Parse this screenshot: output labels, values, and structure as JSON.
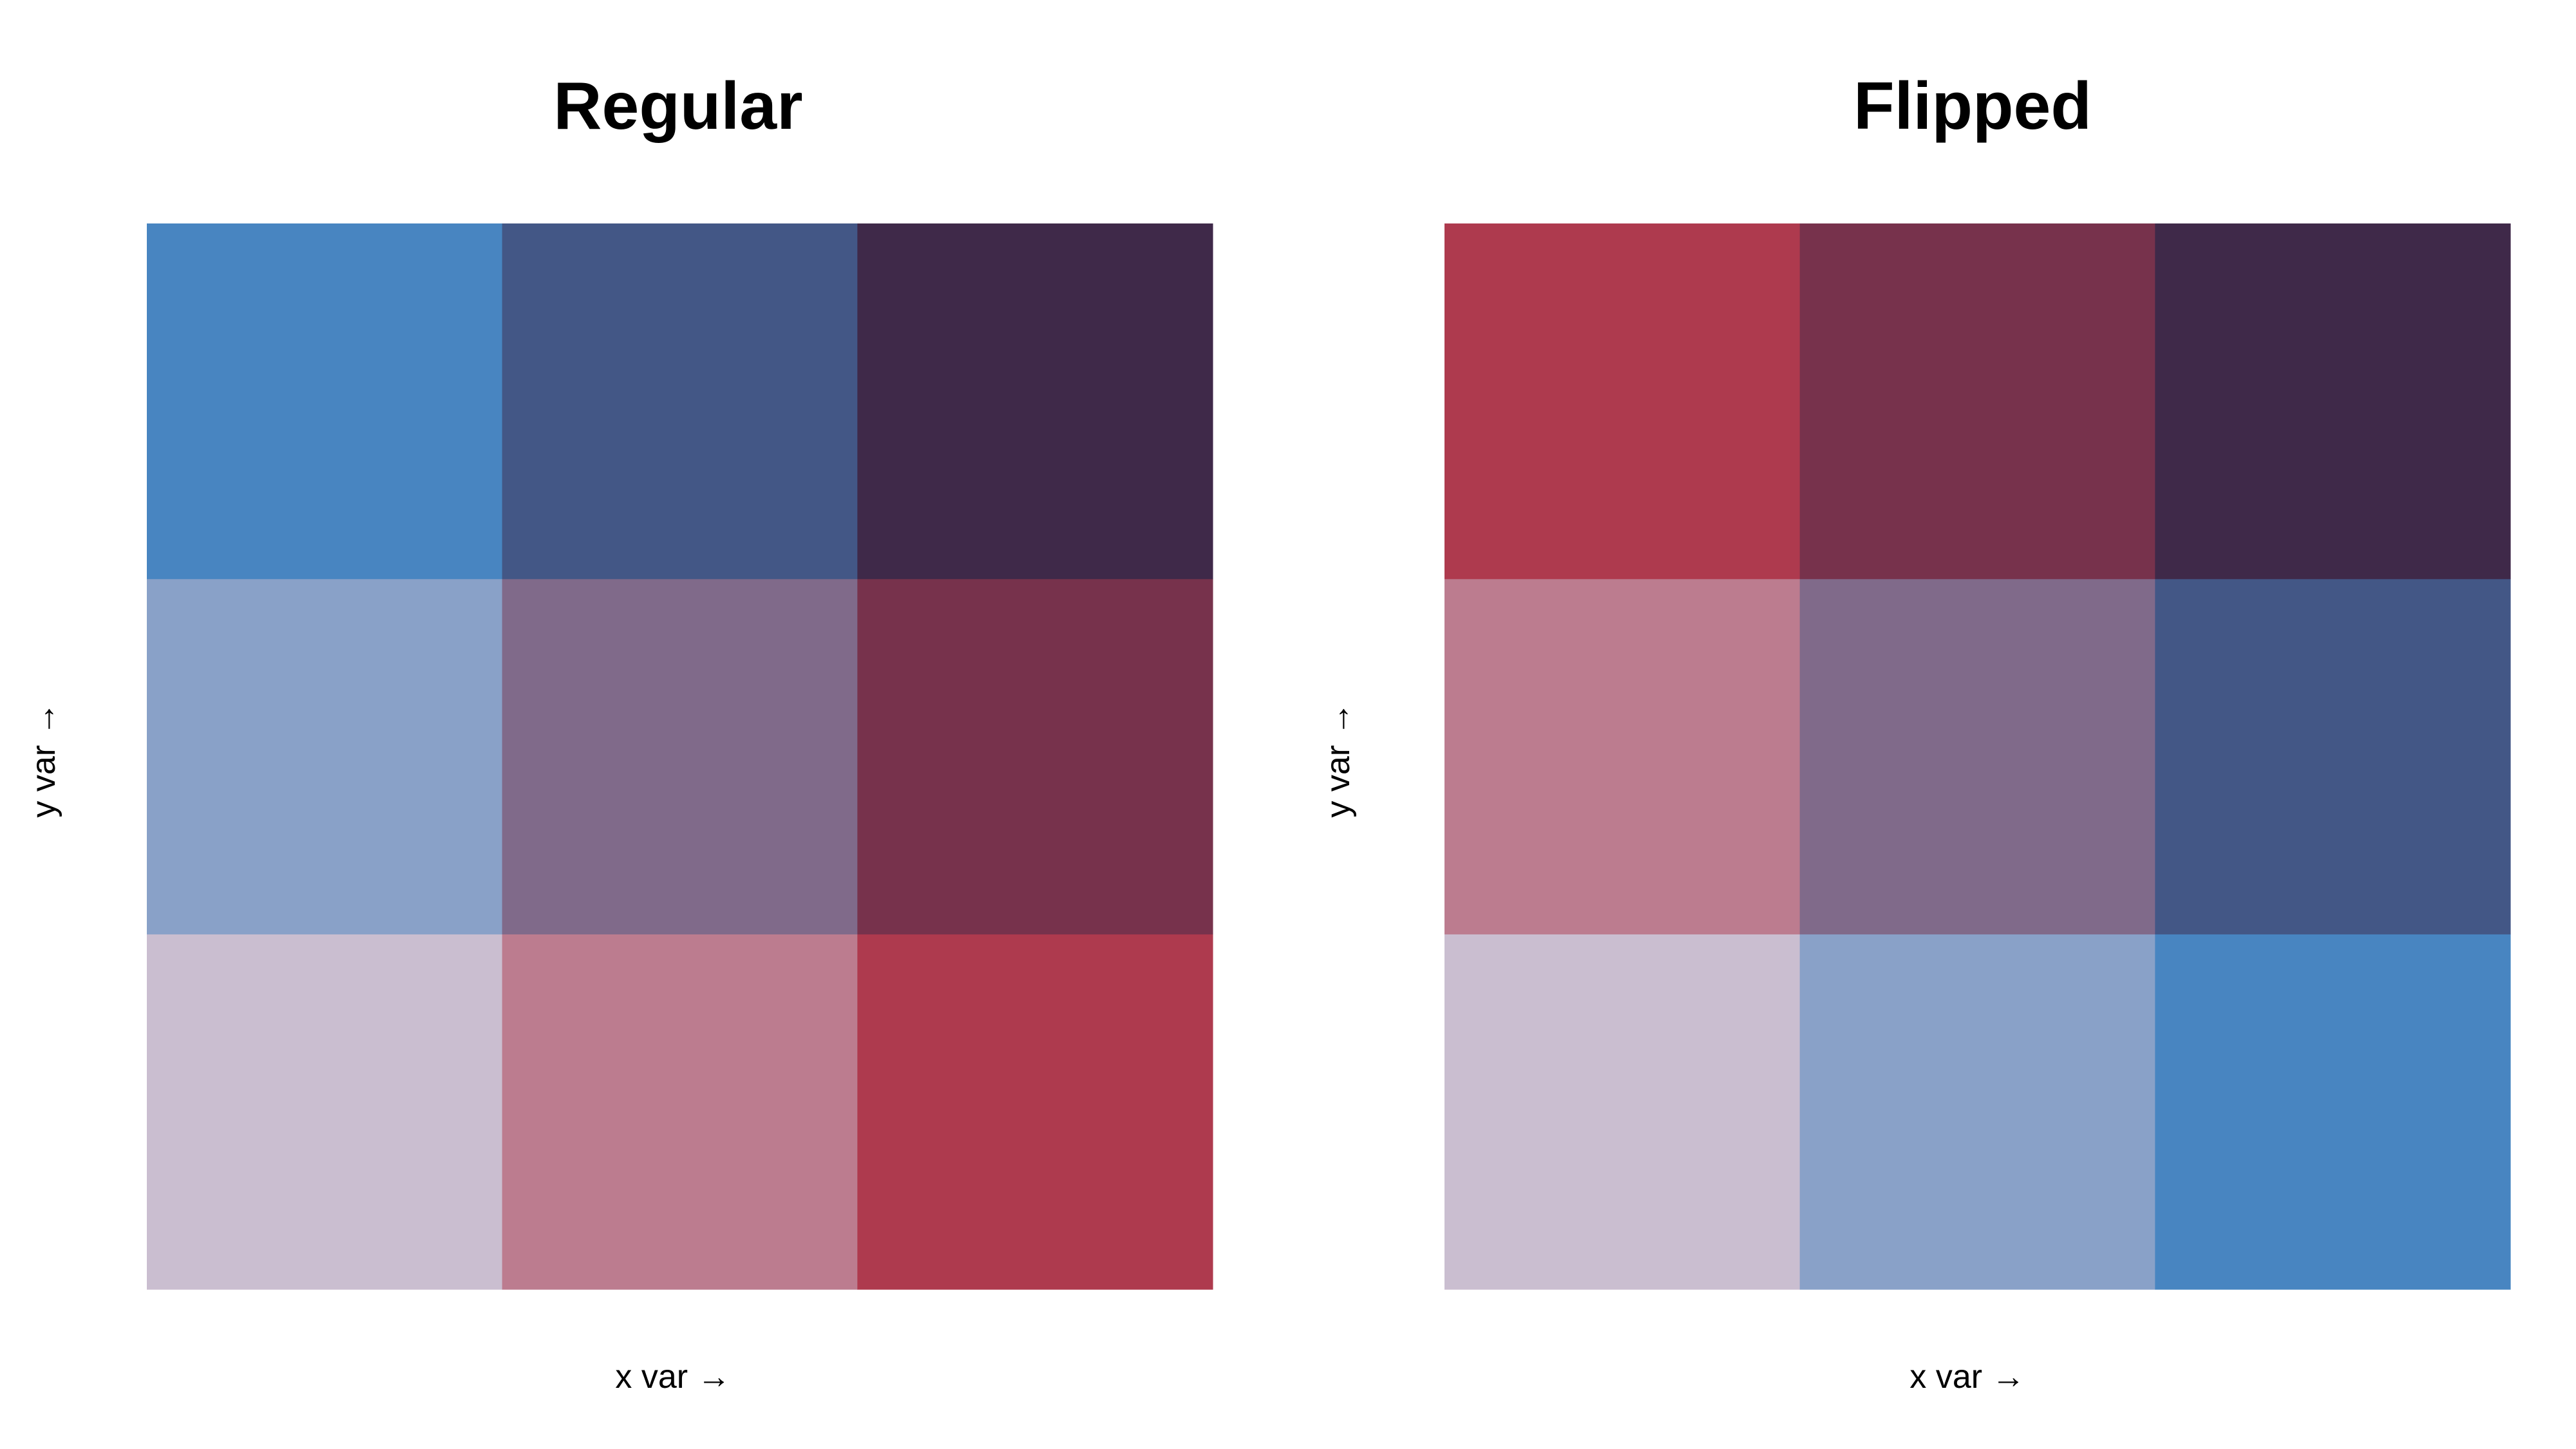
{
  "chart_data": [
    {
      "type": "heatmap",
      "title": "Regular",
      "xlabel": "x var →",
      "ylabel": "y var →",
      "x": [
        1,
        2,
        3
      ],
      "y": [
        1,
        2,
        3
      ],
      "cells": [
        {
          "x": 1,
          "y": 1,
          "color": "#CABED0"
        },
        {
          "x": 2,
          "y": 1,
          "color": "#BC7C8F"
        },
        {
          "x": 3,
          "y": 1,
          "color": "#AE3A4E"
        },
        {
          "x": 1,
          "y": 2,
          "color": "#89A1C8"
        },
        {
          "x": 2,
          "y": 2,
          "color": "#806A8A"
        },
        {
          "x": 3,
          "y": 2,
          "color": "#77324C"
        },
        {
          "x": 1,
          "y": 3,
          "color": "#4885C1"
        },
        {
          "x": 2,
          "y": 3,
          "color": "#435786"
        },
        {
          "x": 3,
          "y": 3,
          "color": "#3F2949"
        }
      ]
    },
    {
      "type": "heatmap",
      "title": "Flipped",
      "xlabel": "x var →",
      "ylabel": "y var →",
      "x": [
        1,
        2,
        3
      ],
      "y": [
        1,
        2,
        3
      ],
      "cells": [
        {
          "x": 1,
          "y": 1,
          "color": "#CABED0"
        },
        {
          "x": 2,
          "y": 1,
          "color": "#89A1C8"
        },
        {
          "x": 3,
          "y": 1,
          "color": "#4885C1"
        },
        {
          "x": 1,
          "y": 2,
          "color": "#BC7C8F"
        },
        {
          "x": 2,
          "y": 2,
          "color": "#806A8A"
        },
        {
          "x": 3,
          "y": 2,
          "color": "#435786"
        },
        {
          "x": 1,
          "y": 3,
          "color": "#AE3A4E"
        },
        {
          "x": 2,
          "y": 3,
          "color": "#77324C"
        },
        {
          "x": 3,
          "y": 3,
          "color": "#3F2949"
        }
      ]
    }
  ]
}
